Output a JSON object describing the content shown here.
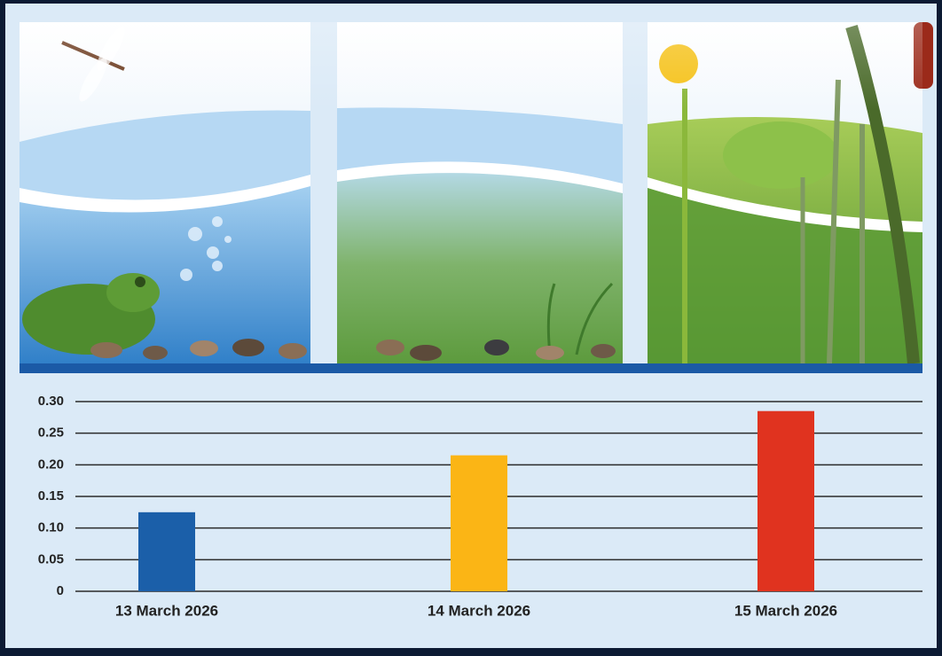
{
  "chart_data": {
    "type": "bar",
    "categories": [
      "13 March 2026",
      "14 March 2026",
      "15 March 2026"
    ],
    "values": [
      0.125,
      0.215,
      0.285
    ],
    "colors": [
      "#1b5fa9",
      "#fbb515",
      "#e0331f"
    ],
    "ylim": [
      0,
      0.3
    ],
    "yticks": [
      0,
      0.05,
      {
        "value": 0.1,
        "label": "0.10"
      },
      0.15,
      {
        "value": 0.2,
        "label": "0.20"
      },
      0.25,
      {
        "value": 0.3,
        "label": "0.30"
      }
    ],
    "grid": true
  }
}
